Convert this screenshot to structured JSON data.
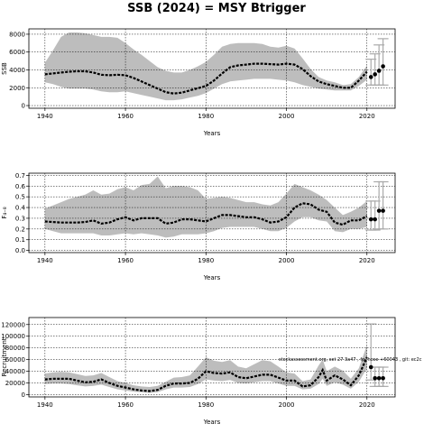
{
  "title": "SSB (2024) = MSY Btrigger",
  "colors": {
    "band": "#bdbdbd",
    "line": "#000000",
    "grid": "#000000",
    "whisker": "#aaaaaa"
  },
  "chart_data": [
    {
      "type": "line",
      "ylabel": "SSB",
      "xlabel": "Years",
      "xlim": [
        1936,
        2027
      ],
      "ylim": [
        -300,
        8600
      ],
      "xticks": [
        1940,
        1960,
        1980,
        2000,
        2020
      ],
      "yticks": [
        0,
        2000,
        4000,
        6000,
        8000
      ],
      "grid": true,
      "years": [
        1940,
        1942,
        1944,
        1946,
        1948,
        1950,
        1952,
        1954,
        1956,
        1958,
        1960,
        1962,
        1964,
        1966,
        1968,
        1970,
        1972,
        1974,
        1976,
        1978,
        1980,
        1982,
        1984,
        1986,
        1988,
        1990,
        1992,
        1994,
        1996,
        1998,
        2000,
        2002,
        2004,
        2006,
        2008,
        2010,
        2012,
        2014,
        2016,
        2018,
        2020
      ],
      "series": [
        {
          "role": "estimate",
          "values": [
            3500,
            3600,
            3700,
            3800,
            3850,
            3850,
            3700,
            3450,
            3400,
            3450,
            3400,
            3100,
            2700,
            2300,
            1900,
            1500,
            1350,
            1450,
            1700,
            1950,
            2200,
            2800,
            3600,
            4300,
            4500,
            4600,
            4700,
            4700,
            4650,
            4600,
            4700,
            4600,
            4100,
            3300,
            2700,
            2400,
            2200,
            2000,
            2000,
            2800,
            3800
          ]
        },
        {
          "role": "upper",
          "values": [
            4800,
            6200,
            7700,
            8200,
            8200,
            8100,
            7900,
            7700,
            7700,
            7600,
            7000,
            6300,
            5700,
            5000,
            4300,
            3900,
            3700,
            3700,
            4000,
            4400,
            4900,
            5700,
            6600,
            6900,
            7000,
            7000,
            7000,
            6900,
            6600,
            6500,
            6700,
            6400,
            5300,
            4100,
            3200,
            2800,
            2600,
            2300,
            2400,
            3200,
            4500
          ]
        },
        {
          "role": "lower",
          "values": [
            2600,
            2400,
            2100,
            1900,
            1900,
            1900,
            1800,
            1600,
            1500,
            1500,
            1600,
            1400,
            1200,
            1000,
            800,
            600,
            600,
            700,
            900,
            1100,
            1400,
            1900,
            2400,
            2700,
            2800,
            2900,
            3000,
            3000,
            3000,
            2900,
            2800,
            2600,
            2300,
            2100,
            1900,
            1800,
            1700,
            1700,
            1700,
            2200,
            2900
          ]
        }
      ],
      "projection": {
        "years": [
          2021,
          2022,
          2023,
          2024
        ],
        "values": [
          3200,
          3500,
          3900,
          4400
        ],
        "upper": [
          5200,
          5800,
          6800,
          7500
        ],
        "lower": [
          2300,
          2300,
          2300,
          2300
        ]
      }
    },
    {
      "type": "line",
      "ylabel": "F₄₋₈",
      "xlabel": "Years",
      "xlim": [
        1936,
        2027
      ],
      "ylim": [
        -0.02,
        0.72
      ],
      "xticks": [
        1940,
        1960,
        1980,
        2000,
        2020
      ],
      "yticks": [
        0.0,
        0.1,
        0.2,
        0.3,
        0.4,
        0.5,
        0.6,
        0.7
      ],
      "grid": true,
      "years": [
        1940,
        1942,
        1944,
        1946,
        1948,
        1950,
        1952,
        1954,
        1956,
        1958,
        1960,
        1962,
        1964,
        1966,
        1968,
        1970,
        1972,
        1974,
        1976,
        1978,
        1980,
        1982,
        1984,
        1986,
        1988,
        1990,
        1992,
        1994,
        1996,
        1998,
        2000,
        2002,
        2004,
        2006,
        2008,
        2010,
        2012,
        2014,
        2016,
        2018,
        2020
      ],
      "series": [
        {
          "role": "estimate",
          "values": [
            0.27,
            0.265,
            0.26,
            0.26,
            0.26,
            0.265,
            0.28,
            0.25,
            0.26,
            0.29,
            0.31,
            0.28,
            0.3,
            0.3,
            0.3,
            0.25,
            0.26,
            0.29,
            0.29,
            0.28,
            0.27,
            0.3,
            0.33,
            0.33,
            0.32,
            0.31,
            0.31,
            0.29,
            0.26,
            0.27,
            0.31,
            0.4,
            0.44,
            0.43,
            0.38,
            0.36,
            0.26,
            0.24,
            0.28,
            0.28,
            0.32
          ]
        },
        {
          "role": "upper",
          "values": [
            0.39,
            0.42,
            0.45,
            0.48,
            0.5,
            0.52,
            0.56,
            0.52,
            0.53,
            0.57,
            0.59,
            0.56,
            0.61,
            0.62,
            0.69,
            0.58,
            0.6,
            0.6,
            0.59,
            0.56,
            0.48,
            0.49,
            0.5,
            0.49,
            0.47,
            0.45,
            0.45,
            0.43,
            0.42,
            0.45,
            0.53,
            0.62,
            0.59,
            0.56,
            0.52,
            0.47,
            0.4,
            0.33,
            0.36,
            0.4,
            0.46
          ]
        },
        {
          "role": "lower",
          "values": [
            0.2,
            0.18,
            0.16,
            0.16,
            0.16,
            0.16,
            0.16,
            0.14,
            0.14,
            0.15,
            0.16,
            0.15,
            0.16,
            0.15,
            0.14,
            0.12,
            0.13,
            0.15,
            0.15,
            0.15,
            0.16,
            0.18,
            0.21,
            0.22,
            0.22,
            0.22,
            0.22,
            0.2,
            0.18,
            0.18,
            0.21,
            0.27,
            0.31,
            0.31,
            0.28,
            0.27,
            0.18,
            0.17,
            0.2,
            0.2,
            0.22
          ]
        }
      ],
      "projection": {
        "years": [
          2021,
          2022,
          2023,
          2024
        ],
        "values": [
          0.29,
          0.29,
          0.37,
          0.37
        ],
        "upper": [
          0.46,
          0.46,
          0.64,
          0.64
        ],
        "lower": [
          0.19,
          0.19,
          0.2,
          0.2
        ]
      }
    },
    {
      "type": "line",
      "ylabel": "Recruitment",
      "xlabel": "Years",
      "xlim": [
        1936,
        2027
      ],
      "ylim": [
        -4000,
        132000
      ],
      "xticks": [
        1940,
        1960,
        1980,
        2000,
        2020
      ],
      "yticks": [
        0,
        20000,
        40000,
        60000,
        80000,
        100000,
        120000
      ],
      "grid": true,
      "years": [
        1940,
        1942,
        1944,
        1946,
        1948,
        1950,
        1952,
        1954,
        1956,
        1958,
        1960,
        1962,
        1964,
        1966,
        1968,
        1970,
        1972,
        1974,
        1976,
        1978,
        1980,
        1982,
        1984,
        1986,
        1988,
        1990,
        1992,
        1994,
        1996,
        1998,
        2000,
        2002,
        2004,
        2006,
        2008,
        2009,
        2010,
        2012,
        2014,
        2016,
        2018,
        2020
      ],
      "series": [
        {
          "role": "estimate",
          "values": [
            26000,
            27000,
            27000,
            27000,
            24000,
            21000,
            22000,
            26000,
            20000,
            15000,
            12000,
            9000,
            7000,
            6000,
            8000,
            15000,
            19000,
            19000,
            20000,
            27000,
            40000,
            37000,
            36000,
            38000,
            30000,
            28000,
            31000,
            34000,
            34000,
            29000,
            24000,
            24000,
            14000,
            16000,
            30000,
            42000,
            24000,
            33000,
            26000,
            16000,
            33000,
            64000
          ]
        },
        {
          "role": "upper",
          "values": [
            36000,
            38000,
            39000,
            38000,
            35000,
            32000,
            33000,
            37000,
            30000,
            23000,
            20000,
            16000,
            14000,
            13000,
            15000,
            22000,
            29000,
            30000,
            33000,
            48000,
            64000,
            58000,
            56000,
            59000,
            48000,
            45000,
            52000,
            59000,
            57000,
            48000,
            38000,
            36000,
            23000,
            26000,
            50000,
            60000,
            40000,
            48000,
            41000,
            27000,
            45000,
            85000
          ]
        },
        {
          "role": "lower",
          "values": [
            18000,
            19000,
            19000,
            18000,
            16000,
            14000,
            15000,
            17000,
            13000,
            9000,
            7000,
            5000,
            4000,
            3000,
            4000,
            9000,
            12000,
            12000,
            13000,
            18000,
            26000,
            24000,
            23000,
            25000,
            20000,
            19000,
            21000,
            23000,
            23000,
            19000,
            15000,
            15000,
            9000,
            10000,
            18000,
            27000,
            15000,
            21000,
            17000,
            10000,
            22000,
            45000
          ]
        }
      ],
      "projection": {
        "years": [
          2021,
          2022,
          2023,
          2024
        ],
        "values": [
          47000,
          28000,
          28000,
          28000
        ],
        "upper": [
          121000,
          47000,
          47000,
          47000
        ],
        "lower": [
          25000,
          14000,
          14000,
          14000
        ]
      },
      "annotation": "stockassessment.org, set 27 3a47 , fp: hose +60043 , git: ec2c"
    }
  ]
}
